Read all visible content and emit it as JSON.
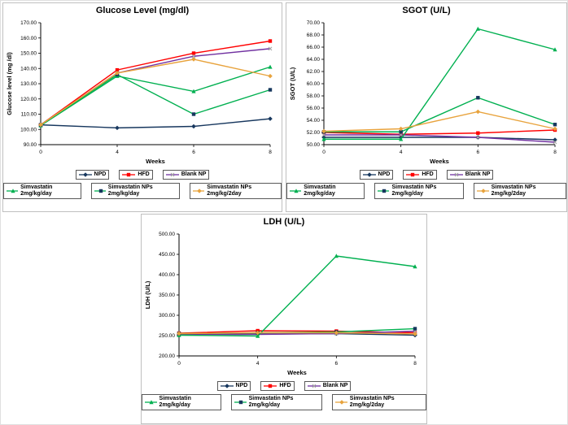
{
  "page_title": "Glucose / SGOT / LDH line charts",
  "chart_data": [
    {
      "id": "glucose",
      "type": "line",
      "title": "Glucose Level (mg/dl)",
      "xlabel": "Weeks",
      "ylabel": "Glucose level (mg /dl)",
      "categories": [
        "0",
        "4",
        "6",
        "8"
      ],
      "ylim": [
        90,
        170
      ],
      "ytick_step": 10,
      "grid": false,
      "legend_position": "bottom",
      "series": [
        {
          "name": "NPD",
          "color": "#17375E",
          "marker": "diamond",
          "marker_color": "#17375E",
          "values": [
            103,
            101,
            102,
            107
          ]
        },
        {
          "name": "HFD",
          "color": "#FF0000",
          "marker": "square",
          "marker_color": "#FF0000",
          "values": [
            103,
            139,
            150,
            158
          ]
        },
        {
          "name": "Blank NP",
          "color": "#7030A0",
          "marker": "x",
          "marker_color": "#A6A6A6",
          "values": [
            103,
            137,
            148,
            153
          ]
        },
        {
          "name": "Simvastatin 2mg/kg/day",
          "color": "#00B050",
          "marker": "triangle",
          "marker_color": "#00B050",
          "values": [
            102.5,
            135,
            125,
            141
          ]
        },
        {
          "name": "Simvastatin NPs 2mg/kg/day",
          "color": "#00B050",
          "marker": "square",
          "marker_color": "#17375E",
          "values": [
            103,
            136,
            110,
            126
          ]
        },
        {
          "name": "Simvastatin NPs 2mg/kg/2day",
          "color": "#E8A33D",
          "marker": "diamond",
          "marker_color": "#E8A33D",
          "values": [
            103,
            137,
            146,
            135
          ]
        }
      ]
    },
    {
      "id": "sgot",
      "type": "line",
      "title": "SGOT (U/L)",
      "xlabel": "Weeks",
      "ylabel": "SGOT (U/L)",
      "categories": [
        "0",
        "4",
        "6",
        "8"
      ],
      "ylim": [
        50,
        70
      ],
      "ytick_step": 2,
      "grid": false,
      "legend_position": "bottom",
      "series": [
        {
          "name": "NPD",
          "color": "#17375E",
          "marker": "diamond",
          "marker_color": "#17375E",
          "values": [
            51.2,
            51.2,
            51.2,
            50.8
          ]
        },
        {
          "name": "HFD",
          "color": "#FF0000",
          "marker": "square",
          "marker_color": "#FF0000",
          "values": [
            52.0,
            51.7,
            51.9,
            52.4
          ]
        },
        {
          "name": "Blank NP",
          "color": "#7030A0",
          "marker": "x",
          "marker_color": "#A6A6A6",
          "values": [
            51.6,
            51.6,
            51.2,
            50.4
          ]
        },
        {
          "name": "Simvastatin 2mg/kg/day",
          "color": "#00B050",
          "marker": "triangle",
          "marker_color": "#00B050",
          "values": [
            50.9,
            50.9,
            69.0,
            65.6
          ]
        },
        {
          "name": "Simvastatin NPs 2mg/kg/day",
          "color": "#00B050",
          "marker": "square",
          "marker_color": "#17375E",
          "values": [
            52.1,
            52.1,
            57.7,
            53.3
          ]
        },
        {
          "name": "Simvastatin NPs 2mg/kg/2day",
          "color": "#E8A33D",
          "marker": "diamond",
          "marker_color": "#E8A33D",
          "values": [
            52.2,
            52.6,
            55.4,
            52.6
          ]
        }
      ]
    },
    {
      "id": "ldh",
      "type": "line",
      "title": "LDH (U/L)",
      "xlabel": "Weeks",
      "ylabel": "LDH (U/L)",
      "categories": [
        "0",
        "4",
        "6",
        "8"
      ],
      "ylim": [
        200,
        500
      ],
      "ytick_step": 50,
      "grid": false,
      "legend_position": "bottom",
      "series": [
        {
          "name": "NPD",
          "color": "#17375E",
          "marker": "diamond",
          "marker_color": "#17375E",
          "values": [
            254,
            254,
            255,
            251
          ]
        },
        {
          "name": "HFD",
          "color": "#FF0000",
          "marker": "square",
          "marker_color": "#FF0000",
          "values": [
            256,
            262,
            261,
            257
          ]
        },
        {
          "name": "Blank NP",
          "color": "#7030A0",
          "marker": "x",
          "marker_color": "#A6A6A6",
          "values": [
            253,
            253,
            255,
            261
          ]
        },
        {
          "name": "Simvastatin 2mg/kg/day",
          "color": "#00B050",
          "marker": "triangle",
          "marker_color": "#00B050",
          "values": [
            251,
            249,
            446,
            420
          ]
        },
        {
          "name": "Simvastatin NPs 2mg/kg/day",
          "color": "#00B050",
          "marker": "square",
          "marker_color": "#17375E",
          "values": [
            255,
            257,
            259,
            267
          ]
        },
        {
          "name": "Simvastatin NPs 2mg/kg/2day",
          "color": "#E8A33D",
          "marker": "diamond",
          "marker_color": "#E8A33D",
          "values": [
            255,
            257,
            257,
            254
          ]
        }
      ]
    }
  ]
}
